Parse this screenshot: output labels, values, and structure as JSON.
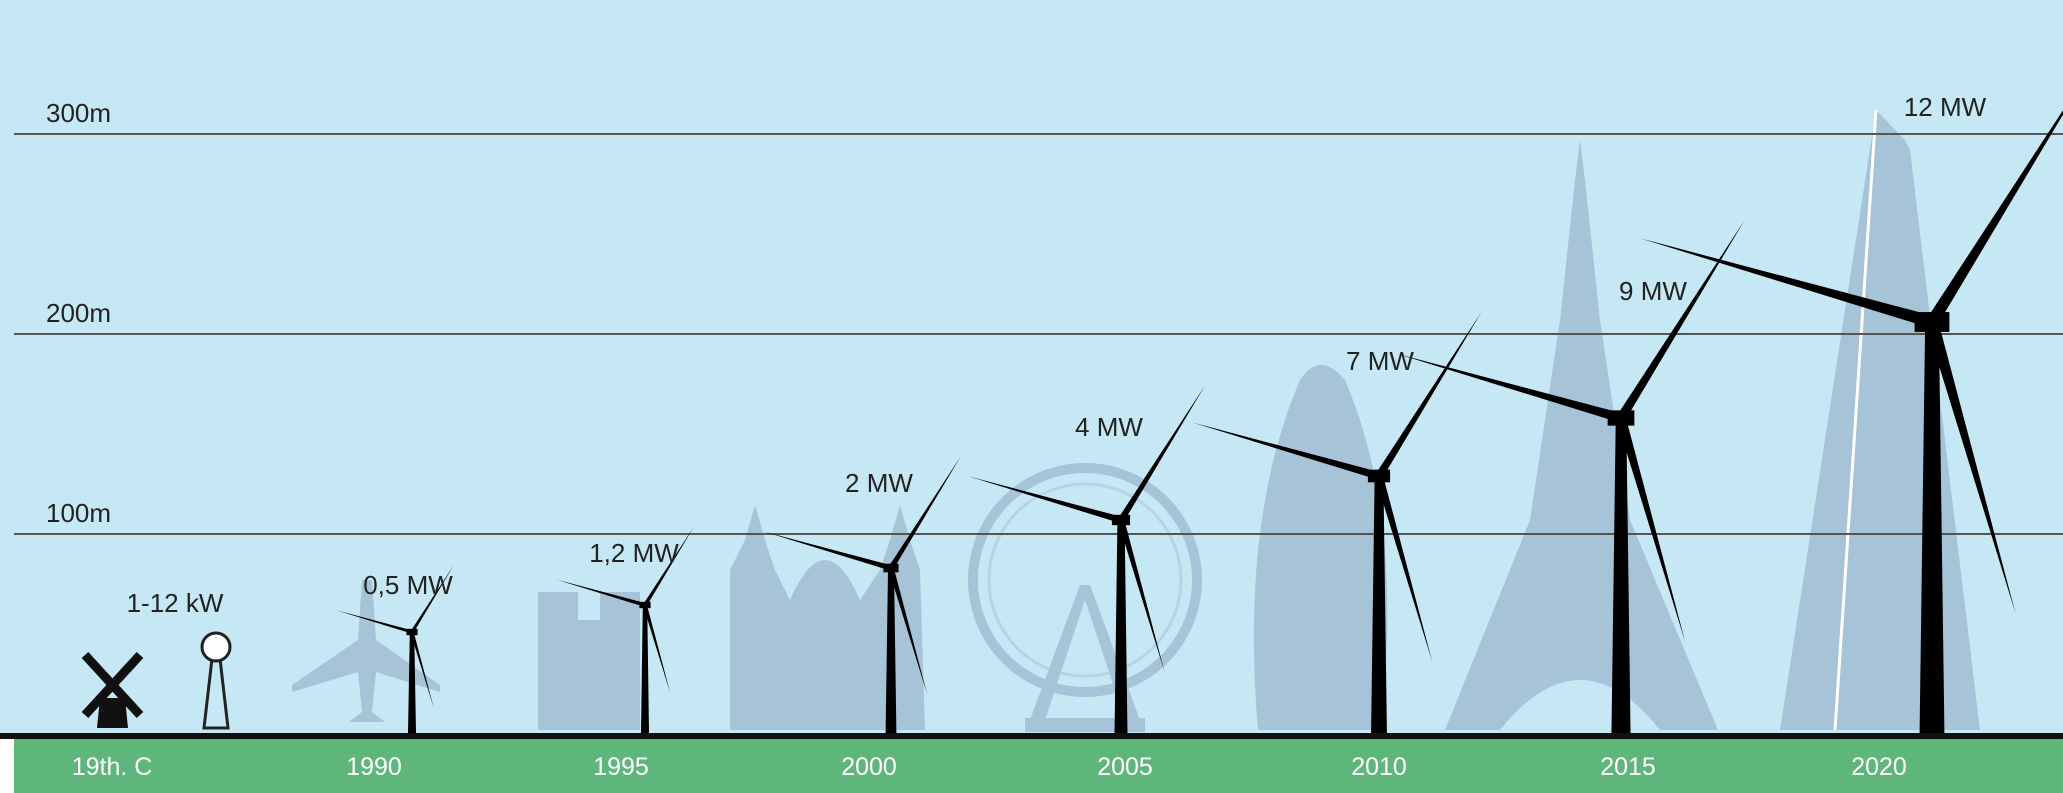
{
  "height_lines": [
    "300m",
    "200m",
    "100m"
  ],
  "eras": [
    {
      "year": "19th. C",
      "power": "1-12 kW"
    },
    {
      "year": "1990",
      "power": "0,5 MW"
    },
    {
      "year": "1995",
      "power": "1,2 MW"
    },
    {
      "year": "2000",
      "power": "2 MW"
    },
    {
      "year": "2005",
      "power": "4 MW"
    },
    {
      "year": "2010",
      "power": "7 MW"
    },
    {
      "year": "2015",
      "power": "9 MW"
    },
    {
      "year": "2020",
      "power": "12 MW"
    }
  ]
}
